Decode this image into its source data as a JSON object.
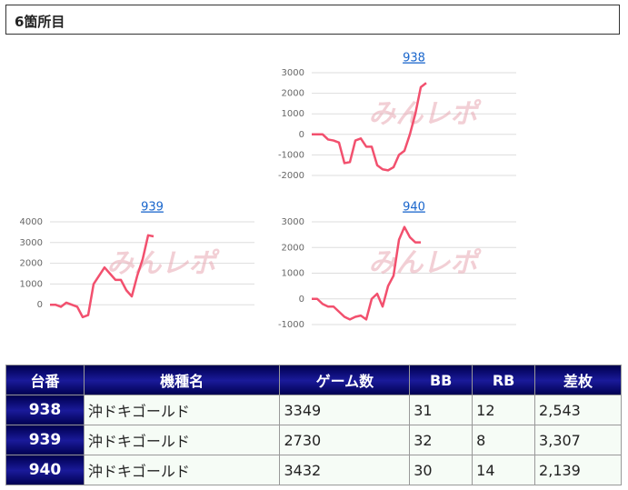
{
  "header": {
    "title": "6箇所目"
  },
  "chart_data": [
    {
      "type": "line",
      "title": "938",
      "watermark": "みんレポ",
      "color": "#f2506e",
      "values": [
        0,
        0,
        0,
        -250,
        -300,
        -400,
        -1400,
        -1350,
        -300,
        -200,
        -600,
        -600,
        -1500,
        -1700,
        -1750,
        -1600,
        -1000,
        -800,
        0,
        1000,
        2300,
        2500
      ],
      "ylim": [
        -2000,
        3000
      ],
      "yticks": [
        -2000,
        -1000,
        0,
        1000,
        2000,
        3000
      ],
      "grid": true
    },
    {
      "type": "line",
      "title": "939",
      "watermark": "みんレポ",
      "color": "#f2506e",
      "values": [
        0,
        0,
        -100,
        100,
        0,
        -100,
        -600,
        -500,
        1000,
        1400,
        1800,
        1500,
        1200,
        1200,
        700,
        400,
        1400,
        2200,
        3350,
        3300
      ],
      "ylim": [
        -1000,
        4000
      ],
      "yticks": [
        0,
        1000,
        2000,
        3000,
        4000
      ],
      "grid": true
    },
    {
      "type": "line",
      "title": "940",
      "watermark": "みんレポ",
      "color": "#f2506e",
      "values": [
        0,
        0,
        -200,
        -300,
        -300,
        -500,
        -700,
        -800,
        -700,
        -650,
        -800,
        0,
        200,
        -300,
        500,
        900,
        2300,
        2800,
        2400,
        2200,
        2200
      ],
      "ylim": [
        -1000,
        3000
      ],
      "yticks": [
        -1000,
        0,
        1000,
        2000,
        3000
      ],
      "grid": true
    }
  ],
  "table": {
    "header": [
      "台番",
      "機種名",
      "ゲーム数",
      "BB",
      "RB",
      "差枚"
    ],
    "rows": [
      [
        "938",
        "沖ドキゴールド",
        "3349",
        "31",
        "12",
        "2,543"
      ],
      [
        "939",
        "沖ドキゴールド",
        "2730",
        "32",
        "8",
        "3,307"
      ],
      [
        "940",
        "沖ドキゴールド",
        "3432",
        "30",
        "14",
        "2,139"
      ]
    ]
  }
}
